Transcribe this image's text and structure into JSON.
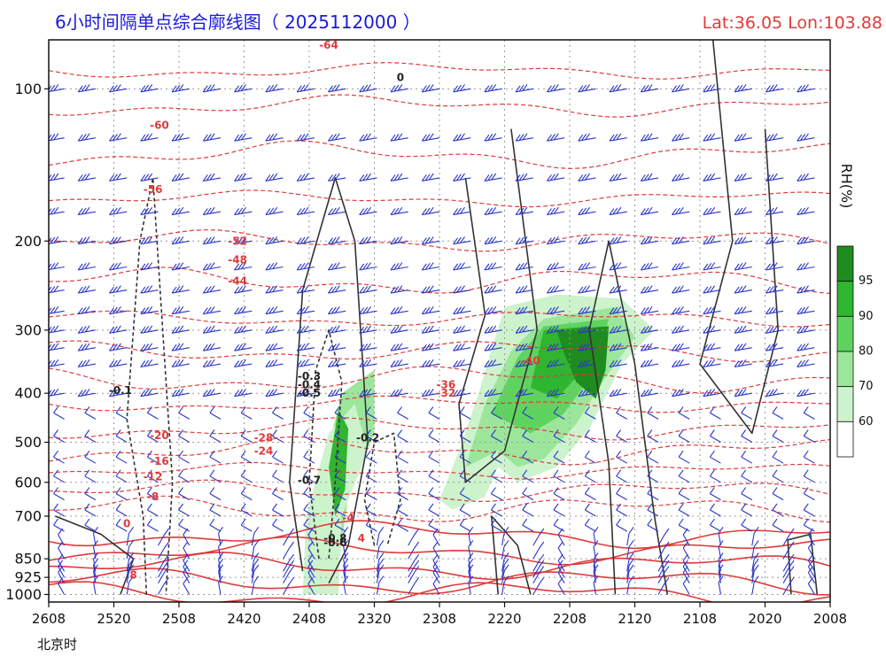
{
  "title": "6小时间隔单点综合廓线图（ 2025112000 ）",
  "location": "Lat:36.05  Lon:103.88",
  "chart_data": {
    "type": "time-height cross section (contour + shading + wind barbs)",
    "y_axis": {
      "unit": "hPa",
      "scale": "log-pressure, inverted",
      "ticks": [
        100,
        200,
        300,
        400,
        500,
        600,
        700,
        850,
        925,
        1000
      ],
      "range": [
        1000,
        80
      ]
    },
    "x_axis": {
      "label": "北京时",
      "ticks": [
        "2608",
        "2520",
        "2508",
        "2420",
        "2408",
        "2320",
        "2308",
        "2220",
        "2208",
        "2120",
        "2108",
        "2020",
        "2008"
      ]
    },
    "colorbar": {
      "label": "RH(%)",
      "levels": [
        95,
        90,
        80,
        70,
        60
      ],
      "colors": [
        "#1e8c1e",
        "#2fb52f",
        "#5fd35f",
        "#9ce69c",
        "#cdf3cd",
        "#ffffff"
      ]
    },
    "temperature_labels": [
      "-64",
      "-60",
      "-56",
      "-52",
      "-48",
      "-44",
      "-40",
      "-36",
      "-32",
      "-28",
      "-24",
      "-20",
      "-16",
      "-12",
      "-8",
      "-4",
      "0",
      "4",
      "8"
    ],
    "vertical_velocity_labels": [
      "0",
      "-0.1",
      "-0.2",
      "-0.3",
      "-0.4",
      "-0.5",
      "-0.6",
      "-0.7",
      "-0.8"
    ],
    "grid": true
  }
}
